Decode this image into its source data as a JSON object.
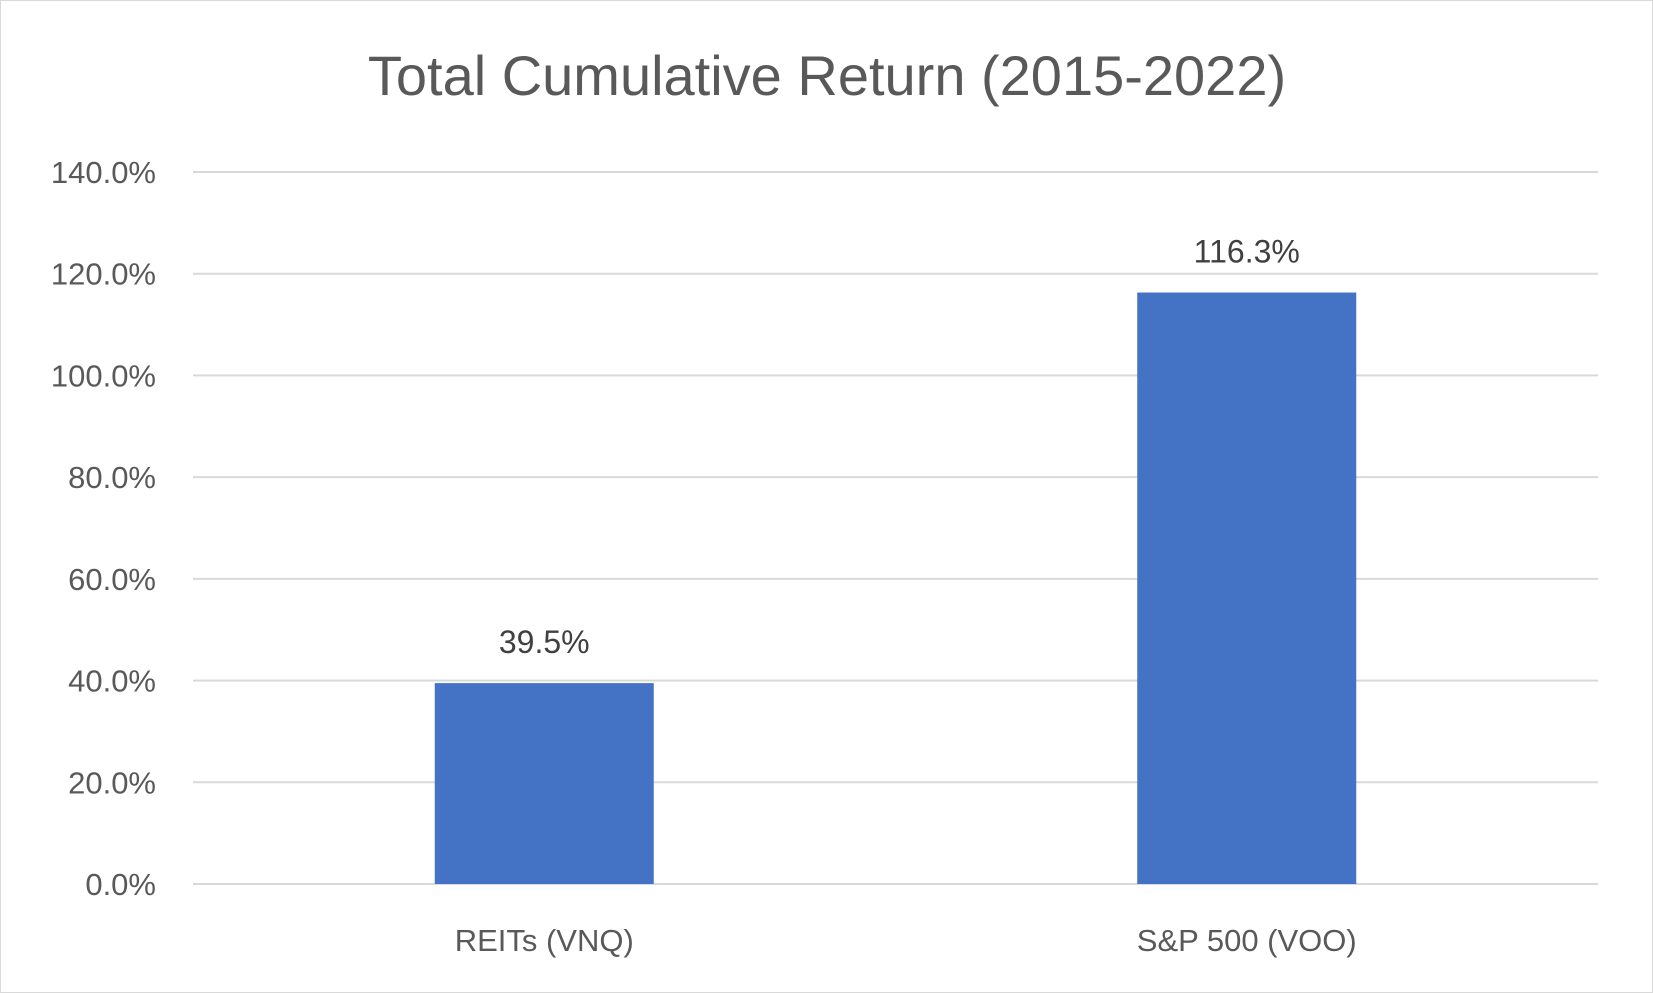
{
  "chart_data": {
    "type": "bar",
    "title": "Total Cumulative Return (2015-2022)",
    "xlabel": "",
    "ylabel": "",
    "categories": [
      "REITs (VNQ)",
      "S&P 500 (VOO)"
    ],
    "values": [
      39.5,
      116.3
    ],
    "value_labels": [
      "39.5%",
      "116.3%"
    ],
    "ylim": [
      0,
      140
    ],
    "yticks": [
      0,
      20,
      40,
      60,
      80,
      100,
      120,
      140
    ],
    "ytick_labels": [
      "0.0%",
      "20.0%",
      "40.0%",
      "60.0%",
      "80.0%",
      "100.0%",
      "120.0%",
      "140.0%"
    ],
    "grid": true,
    "legend": "none",
    "bar_color": "#4472C4",
    "gridline_color": "#d9d9d9",
    "text_color": "#595959"
  }
}
